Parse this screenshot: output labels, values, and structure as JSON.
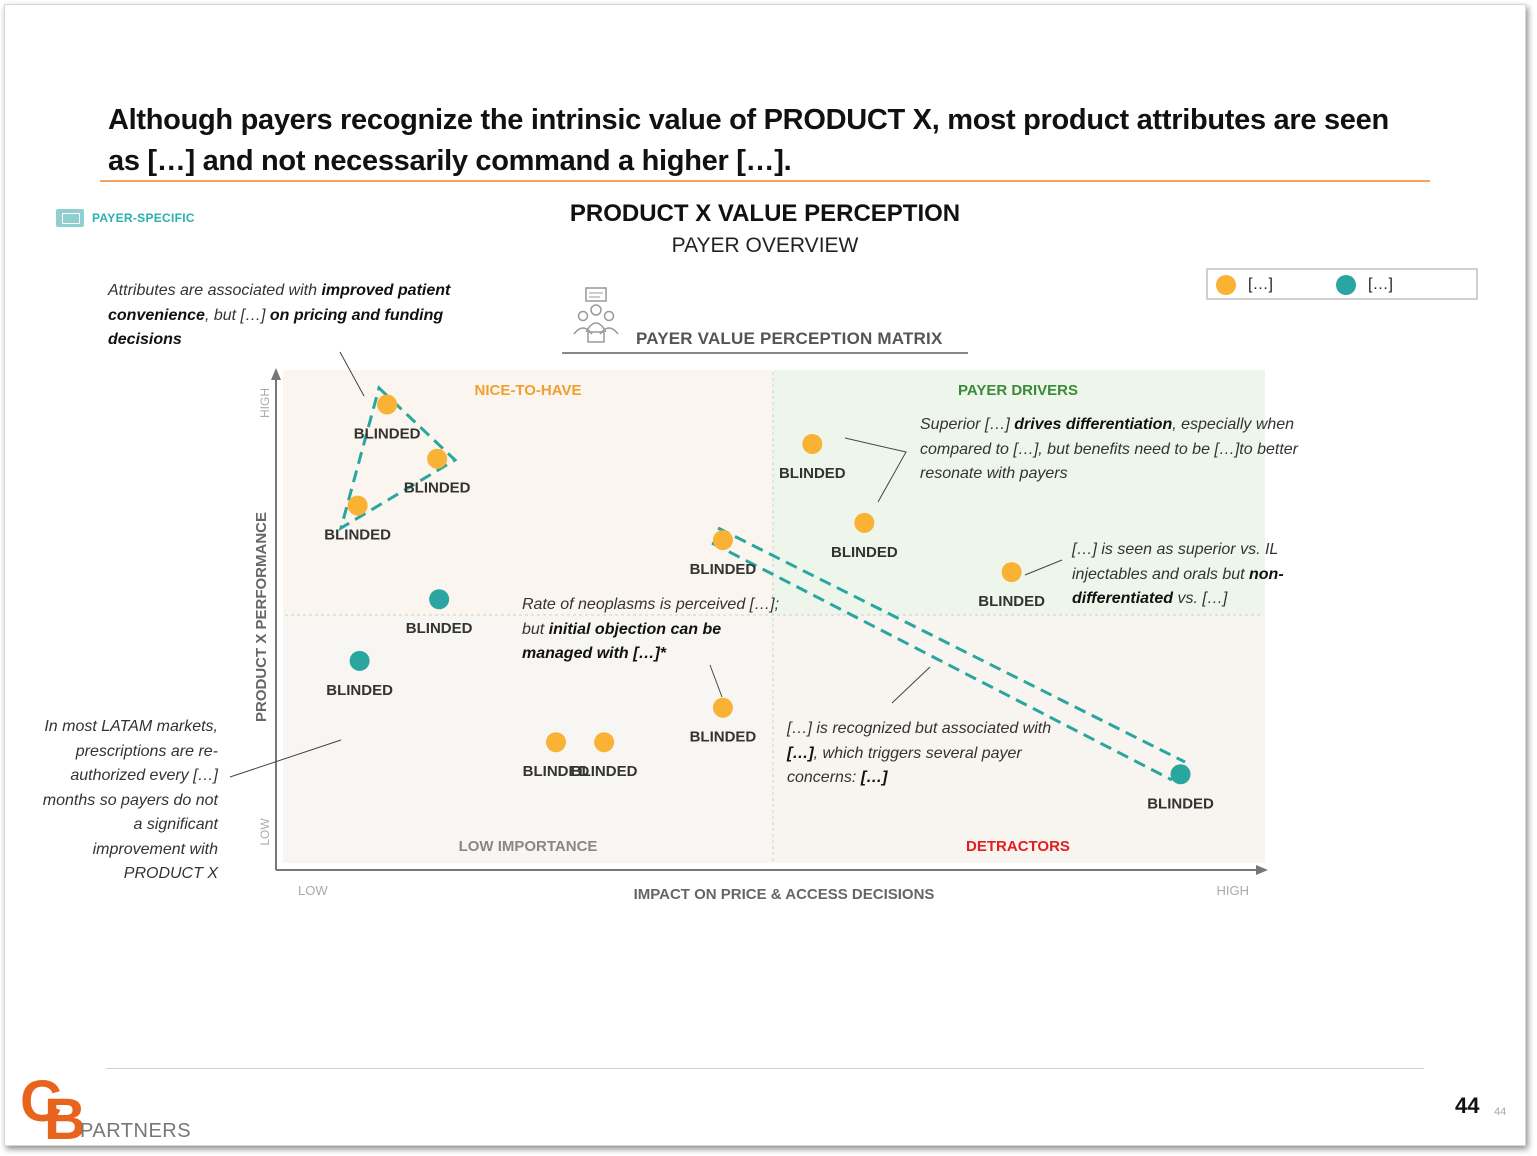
{
  "slide": {
    "title": "Although payers recognize the intrinsic value of PRODUCT X, most product attributes are seen as […] and not necessarily command a higher […].",
    "tag": "PAYER-SPECIFIC",
    "chart_title": "PRODUCT X VALUE  PERCEPTION",
    "chart_subtitle": "PAYER OVERVIEW",
    "matrix_title": "PAYER VALUE PERCEPTION MATRIX",
    "page_number": "44",
    "page_number_small": "44",
    "logo_text": "PARTNERS",
    "logo_letters": "CB"
  },
  "legend": [
    {
      "label": "[…]",
      "color": "#f9b233"
    },
    {
      "label": "[…]",
      "color": "#2aa6a0"
    }
  ],
  "colors": {
    "orange": "#f9b233",
    "teal": "#2aa6a0",
    "quad_nice": "#faf5ee",
    "quad_drivers": "#eef6ec",
    "quad_low": "#f8f6f2",
    "quad_detractors": "#f8f4ef",
    "nice_label": "#f0a030",
    "drivers_label": "#3a8a3a",
    "low_label": "#888888",
    "detractors_label": "#e02020"
  },
  "chart_data": {
    "type": "scatter",
    "xlabel": "IMPACT ON PRICE & ACCESS DECISIONS",
    "ylabel": "PRODUCT X PERFORMANCE",
    "x_low": "LOW",
    "x_high": "HIGH",
    "y_low": "LOW",
    "y_high": "HIGH",
    "xlim": [
      0,
      100
    ],
    "ylim": [
      0,
      100
    ],
    "quadrants": {
      "top_left": "NICE-TO-HAVE",
      "top_right": "PAYER DRIVERS",
      "bottom_left": "LOW IMPORTANCE",
      "bottom_right": "DETRACTORS"
    },
    "points": [
      {
        "label": "BLINDED",
        "group": "orange",
        "x": 10.6,
        "y": 93
      },
      {
        "label": "BLINDED",
        "group": "orange",
        "x": 15.7,
        "y": 82
      },
      {
        "label": "BLINDED",
        "group": "orange",
        "x": 7.6,
        "y": 72.5
      },
      {
        "label": "BLINDED",
        "group": "orange",
        "x": 44.8,
        "y": 65.5
      },
      {
        "label": "BLINDED",
        "group": "orange",
        "x": 53.9,
        "y": 85
      },
      {
        "label": "BLINDED",
        "group": "orange",
        "x": 59.2,
        "y": 69
      },
      {
        "label": "BLINDED",
        "group": "orange",
        "x": 74.2,
        "y": 59
      },
      {
        "label": "BLINDED",
        "group": "teal",
        "x": 15.9,
        "y": 53.5
      },
      {
        "label": "BLINDED",
        "group": "teal",
        "x": 7.8,
        "y": 41
      },
      {
        "label": "BLINDED",
        "group": "orange",
        "x": 44.8,
        "y": 31.5
      },
      {
        "label": "BLINDED",
        "group": "orange",
        "x": 27.8,
        "y": 24.5
      },
      {
        "label": "BLINDED",
        "group": "orange",
        "x": 32.7,
        "y": 24.5
      },
      {
        "label": "BLINDED",
        "group": "teal",
        "x": 91.4,
        "y": 18
      }
    ]
  },
  "notes": {
    "top_left": {
      "pre": "Attributes are associated with ",
      "b1": "improved patient convenience",
      "mid": ", but […] ",
      "b2": "on pricing and funding decisions",
      "post": ""
    },
    "drivers": {
      "pre": "Superior […] ",
      "b1": "drives differentiation",
      "post": ", especially when compared to […], but benefits need to be […]to better resonate with payers"
    },
    "superior": {
      "pre": "[…] is seen as superior vs. IL injectables and orals but ",
      "b1": "non-differentiated",
      "post": " vs. […]"
    },
    "neoplasm": {
      "pre": "Rate of neoplasms is perceived […]; but ",
      "b1": "initial objection can be managed with […]*",
      "post": ""
    },
    "recognized": {
      "pre": "[…] is recognized but associated with ",
      "b1": "[…]",
      "mid": ", which triggers several payer concerns: ",
      "b2": "[…]"
    },
    "latam": "In most LATAM markets, prescriptions are re-authorized every […] months so payers do not a significant improvement with PRODUCT X"
  }
}
